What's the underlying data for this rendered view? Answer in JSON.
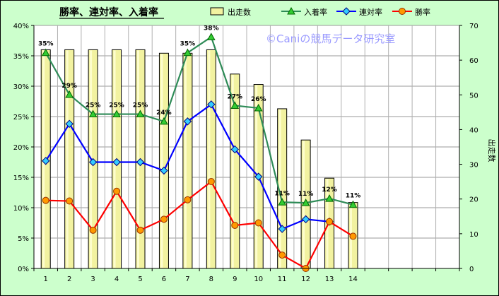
{
  "chart_data": {
    "type": "bar",
    "title": "勝率、連対率、入着率",
    "watermark": "©Caniの競馬データ研究室",
    "y2label": "出走数",
    "categories": [
      "1",
      "2",
      "3",
      "4",
      "5",
      "6",
      "7",
      "8",
      "9",
      "10",
      "11",
      "12",
      "13",
      "14"
    ],
    "ylim": [
      0,
      0.4
    ],
    "y_ticks": [
      "0%",
      "5%",
      "10%",
      "15%",
      "20%",
      "25%",
      "30%",
      "35%",
      "40%"
    ],
    "y2lim": [
      0,
      70
    ],
    "y2_ticks": [
      "0",
      "10",
      "20",
      "30",
      "40",
      "50",
      "60",
      "70"
    ],
    "grid": true,
    "legend_position": "top",
    "series": [
      {
        "name": "出走数",
        "type": "bar",
        "axis": "right",
        "color": "#f2f2a0",
        "values": [
          63,
          63,
          63,
          63,
          63,
          62,
          62,
          63,
          56,
          53,
          46,
          37,
          26,
          19
        ]
      },
      {
        "name": "入着率",
        "type": "line",
        "axis": "left",
        "color": "#2e8b57",
        "marker": "triangle",
        "values": [
          0.355,
          0.286,
          0.254,
          0.254,
          0.254,
          0.242,
          0.355,
          0.381,
          0.268,
          0.264,
          0.109,
          0.108,
          0.115,
          0.105
        ],
        "labels": [
          "35%",
          "29%",
          "25%",
          "25%",
          "25%",
          "24%",
          "35%",
          "38%",
          "27%",
          "26%",
          "11%",
          "11%",
          "12%",
          "11%"
        ]
      },
      {
        "name": "連対率",
        "type": "line",
        "axis": "left",
        "color": "#0000ff",
        "marker": "diamond",
        "values": [
          0.177,
          0.238,
          0.175,
          0.175,
          0.175,
          0.161,
          0.242,
          0.27,
          0.196,
          0.151,
          0.065,
          0.081,
          0.077,
          null
        ]
      },
      {
        "name": "勝率",
        "type": "line",
        "axis": "left",
        "color": "#ff0000",
        "marker": "circle",
        "values": [
          0.112,
          0.111,
          0.063,
          0.127,
          0.063,
          0.081,
          0.113,
          0.143,
          0.071,
          0.075,
          0.022,
          0.0,
          0.077,
          0.053
        ]
      }
    ]
  }
}
